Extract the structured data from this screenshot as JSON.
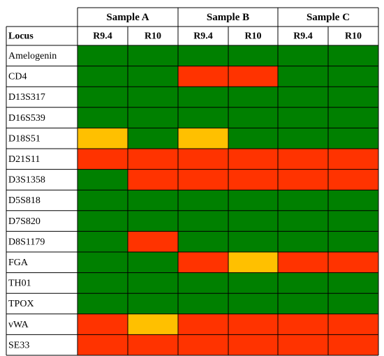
{
  "chart_data": {
    "type": "heatmap",
    "row_header": "Locus",
    "groups": [
      {
        "name": "Sample A",
        "columns": [
          "R9.4",
          "R10"
        ]
      },
      {
        "name": "Sample B",
        "columns": [
          "R9.4",
          "R10"
        ]
      },
      {
        "name": "Sample C",
        "columns": [
          "R9.4",
          "R10"
        ]
      }
    ],
    "rows": [
      "Amelogenin",
      "CD4",
      "D13S317",
      "D16S539",
      "D18S51",
      "D21S11",
      "D3S1358",
      "D5S818",
      "D7S820",
      "D8S1179",
      "FGA",
      "TH01",
      "TPOX",
      "vWA",
      "SE33"
    ],
    "colors": {
      "green": "#008000",
      "red": "#ff3300",
      "yellow": "#ffc000"
    },
    "cells": [
      [
        "green",
        "green",
        "green",
        "green",
        "green",
        "green"
      ],
      [
        "green",
        "green",
        "red",
        "red",
        "green",
        "green"
      ],
      [
        "green",
        "green",
        "green",
        "green",
        "green",
        "green"
      ],
      [
        "green",
        "green",
        "green",
        "green",
        "green",
        "green"
      ],
      [
        "yellow",
        "green",
        "yellow",
        "green",
        "green",
        "green"
      ],
      [
        "red",
        "red",
        "red",
        "red",
        "red",
        "red"
      ],
      [
        "green",
        "red",
        "red",
        "red",
        "red",
        "red"
      ],
      [
        "green",
        "green",
        "green",
        "green",
        "green",
        "green"
      ],
      [
        "green",
        "green",
        "green",
        "green",
        "green",
        "green"
      ],
      [
        "green",
        "red",
        "green",
        "green",
        "green",
        "green"
      ],
      [
        "green",
        "green",
        "red",
        "yellow",
        "red",
        "red"
      ],
      [
        "green",
        "green",
        "green",
        "green",
        "green",
        "green"
      ],
      [
        "green",
        "green",
        "green",
        "green",
        "green",
        "green"
      ],
      [
        "red",
        "yellow",
        "red",
        "red",
        "red",
        "red"
      ],
      [
        "red",
        "red",
        "red",
        "red",
        "red",
        "red"
      ]
    ]
  }
}
